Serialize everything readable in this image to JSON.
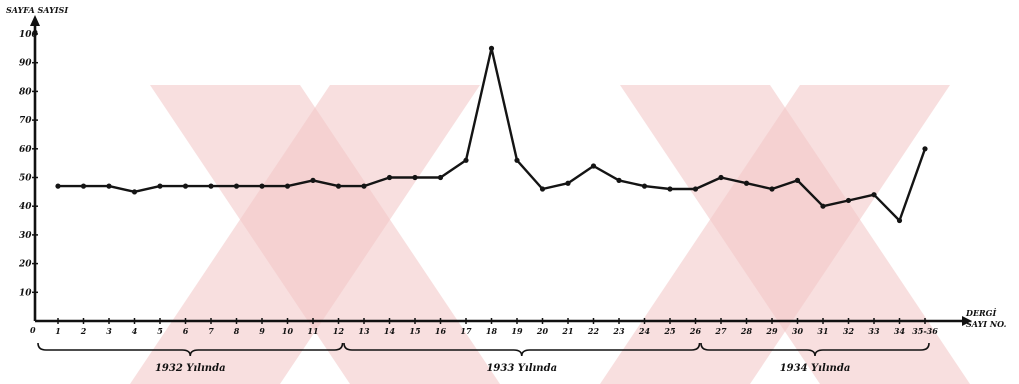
{
  "chart_data": {
    "type": "line",
    "ylabel": "SAYFA SAYISI",
    "xlabel_line1": "DERGİ",
    "xlabel_line2": "SAYI NO.",
    "origin_label": "0",
    "ylim": [
      0,
      100
    ],
    "yticks": [
      10,
      20,
      30,
      40,
      50,
      60,
      70,
      80,
      90,
      100
    ],
    "categories": [
      "1",
      "2",
      "3",
      "4",
      "5",
      "6",
      "7",
      "8",
      "9",
      "10",
      "11",
      "12",
      "13",
      "14",
      "15",
      "16",
      "17",
      "18",
      "19",
      "20",
      "21",
      "22",
      "23",
      "24",
      "25",
      "26",
      "27",
      "28",
      "29",
      "30",
      "31",
      "32",
      "33",
      "34",
      "35-36"
    ],
    "series": [
      {
        "values": [
          47,
          47,
          47,
          45,
          47,
          47,
          47,
          47,
          47,
          47,
          49,
          47,
          47,
          50,
          50,
          50,
          56,
          95,
          56,
          46,
          48,
          54,
          49,
          47,
          46,
          46,
          50,
          48,
          46,
          49,
          40,
          42,
          44,
          35,
          60
        ]
      }
    ],
    "groups": [
      {
        "label": "1932 Yılında",
        "start": 1,
        "end": 12
      },
      {
        "label": "1933 Yılında",
        "start": 13,
        "end": 26
      },
      {
        "label": "1934 Yılında",
        "start": 27,
        "end": 35
      }
    ],
    "grid": false,
    "colors": {
      "line": "#141414",
      "axis": "#111111",
      "watermark": "#f2c4c4"
    }
  }
}
